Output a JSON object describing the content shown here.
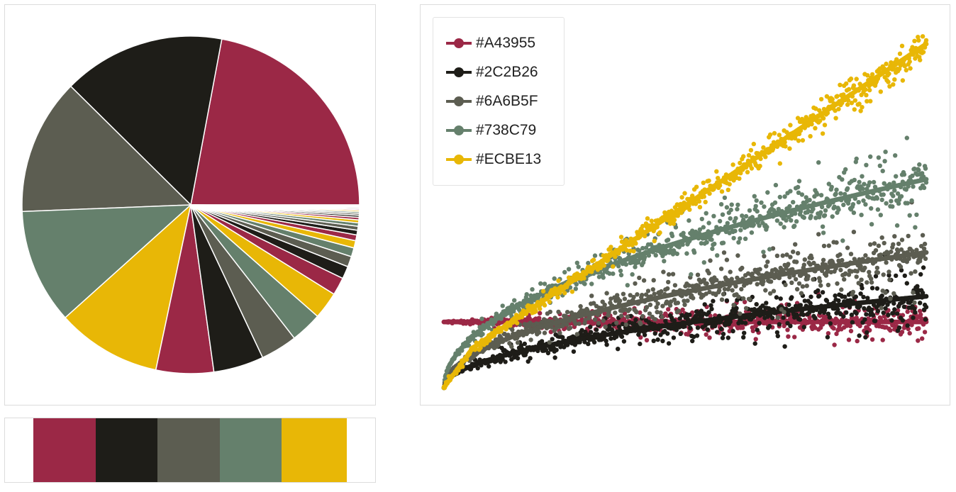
{
  "palette": [
    "#A43955",
    "#2C2B26",
    "#6A6B5F",
    "#738C79",
    "#ECBE13"
  ],
  "slice_colors": [
    "#9B2846",
    "#1E1D18",
    "#5C5D51",
    "#65806C",
    "#E8B706"
  ],
  "chart_data": [
    {
      "type": "pie",
      "slices": [
        {
          "color": "#A43955",
          "value": 22.0
        },
        {
          "color": "#2C2B26",
          "value": 15.5
        },
        {
          "color": "#6A6B5F",
          "value": 13.0
        },
        {
          "color": "#738C79",
          "value": 11.0
        },
        {
          "color": "#ECBE13",
          "value": 10.0
        },
        {
          "color": "#A43955",
          "value": 5.5
        },
        {
          "color": "#2C2B26",
          "value": 4.8
        },
        {
          "color": "#6A6B5F",
          "value": 3.5
        },
        {
          "color": "#738C79",
          "value": 3.0
        },
        {
          "color": "#ECBE13",
          "value": 2.6
        },
        {
          "color": "#A43955",
          "value": 1.7
        },
        {
          "color": "#2C2B26",
          "value": 1.2
        },
        {
          "color": "#6A6B5F",
          "value": 1.0
        },
        {
          "color": "#738C79",
          "value": 0.85
        },
        {
          "color": "#ECBE13",
          "value": 0.7
        },
        {
          "color": "#A43955",
          "value": 0.55
        },
        {
          "color": "#2C2B26",
          "value": 0.45
        },
        {
          "color": "#6A6B5F",
          "value": 0.38
        },
        {
          "color": "#738C79",
          "value": 0.32
        },
        {
          "color": "#ECBE13",
          "value": 0.28
        },
        {
          "color": "#A43955",
          "value": 0.24
        },
        {
          "color": "#2C2B26",
          "value": 0.2
        },
        {
          "color": "#6A6B5F",
          "value": 0.18
        },
        {
          "color": "#738C79",
          "value": 0.16
        },
        {
          "color": "#ECBE13",
          "value": 0.14
        },
        {
          "color": "#A43955",
          "value": 0.12
        },
        {
          "color": "#2C2B26",
          "value": 0.11
        },
        {
          "color": "#6A6B5F",
          "value": 0.1
        },
        {
          "color": "#738C79",
          "value": 0.09
        },
        {
          "color": "#ECBE13",
          "value": 0.08
        }
      ]
    },
    {
      "type": "scatter",
      "x_range": [
        0,
        1
      ],
      "y_range": [
        0,
        1
      ],
      "series": [
        {
          "name": "#A43955",
          "color": "#A43955",
          "trend": {
            "start": 0.18,
            "end": 0.18,
            "shape": "flat"
          },
          "spread": 0.07
        },
        {
          "name": "#2C2B26",
          "color": "#2C2B26",
          "trend": {
            "start": 0.0,
            "end": 0.25,
            "shape": "sqrt"
          },
          "spread": 0.09
        },
        {
          "name": "#6A6B5F",
          "color": "#6A6B5F",
          "trend": {
            "start": 0.0,
            "end": 0.37,
            "shape": "sqrt"
          },
          "spread": 0.12
        },
        {
          "name": "#738C79",
          "color": "#738C79",
          "trend": {
            "start": 0.0,
            "end": 0.57,
            "shape": "sqrt"
          },
          "spread": 0.12
        },
        {
          "name": "#ECBE13",
          "color": "#ECBE13",
          "trend": {
            "start": 0.0,
            "end": 0.94,
            "shape": "linear"
          },
          "spread": 0.06
        }
      ]
    }
  ]
}
